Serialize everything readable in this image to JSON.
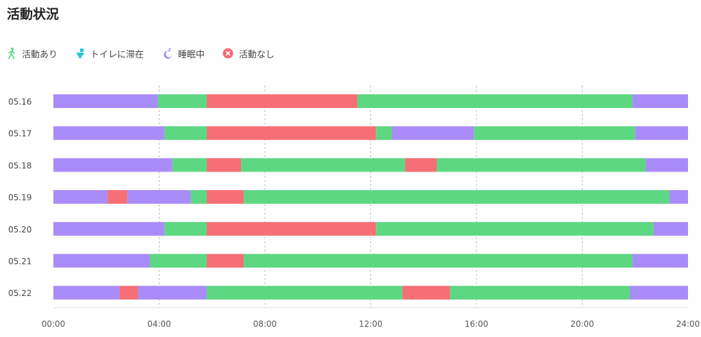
{
  "page": {
    "title": "活動状況"
  },
  "legend": [
    {
      "label": "活動あり",
      "icon": "walking-icon",
      "color": "#5cd97f"
    },
    {
      "label": "トイレに滞在",
      "icon": "toilet-icon",
      "color": "#29c4d6"
    },
    {
      "label": "睡眠中",
      "icon": "sleep-moon-icon",
      "color": "#a68cf5"
    },
    {
      "label": "活動なし",
      "icon": "no-activity-icon",
      "color": "#f56b74"
    }
  ],
  "chart_data": {
    "type": "timeline",
    "title": "活動状況",
    "x_ticks": [
      "00:00",
      "04:00",
      "08:00",
      "12:00",
      "16:00",
      "20:00",
      "24:00"
    ],
    "x_range_hours": [
      0,
      24
    ],
    "grid": "vertical dashed lines at each tick",
    "colors": {
      "active": "#5dd782",
      "toilet": "#5ad0dc",
      "sleep": "#a98cf7",
      "inactive": "#f66f76"
    },
    "rows": [
      {
        "date": "05.16",
        "segments": [
          {
            "start": 0.0,
            "end": 3.95,
            "state": "sleep"
          },
          {
            "start": 3.95,
            "end": 5.8,
            "state": "active"
          },
          {
            "start": 5.8,
            "end": 11.5,
            "state": "inactive"
          },
          {
            "start": 11.5,
            "end": 21.9,
            "state": "active"
          },
          {
            "start": 21.9,
            "end": 24.0,
            "state": "sleep"
          }
        ]
      },
      {
        "date": "05.17",
        "segments": [
          {
            "start": 0.0,
            "end": 4.2,
            "state": "sleep"
          },
          {
            "start": 4.2,
            "end": 5.8,
            "state": "active"
          },
          {
            "start": 5.8,
            "end": 12.2,
            "state": "inactive"
          },
          {
            "start": 12.2,
            "end": 12.8,
            "state": "active"
          },
          {
            "start": 12.8,
            "end": 15.9,
            "state": "sleep"
          },
          {
            "start": 15.9,
            "end": 22.0,
            "state": "active"
          },
          {
            "start": 22.0,
            "end": 24.0,
            "state": "sleep"
          }
        ]
      },
      {
        "date": "05.18",
        "segments": [
          {
            "start": 0.0,
            "end": 4.5,
            "state": "sleep"
          },
          {
            "start": 4.5,
            "end": 5.8,
            "state": "active"
          },
          {
            "start": 5.8,
            "end": 7.1,
            "state": "inactive"
          },
          {
            "start": 7.1,
            "end": 13.3,
            "state": "active"
          },
          {
            "start": 13.3,
            "end": 14.5,
            "state": "inactive"
          },
          {
            "start": 14.5,
            "end": 22.4,
            "state": "active"
          },
          {
            "start": 22.4,
            "end": 24.0,
            "state": "sleep"
          }
        ]
      },
      {
        "date": "05.19",
        "segments": [
          {
            "start": 0.0,
            "end": 2.05,
            "state": "sleep"
          },
          {
            "start": 2.05,
            "end": 2.8,
            "state": "inactive"
          },
          {
            "start": 2.8,
            "end": 5.2,
            "state": "sleep"
          },
          {
            "start": 5.2,
            "end": 5.8,
            "state": "active"
          },
          {
            "start": 5.8,
            "end": 7.2,
            "state": "inactive"
          },
          {
            "start": 7.2,
            "end": 23.3,
            "state": "active"
          },
          {
            "start": 23.3,
            "end": 24.0,
            "state": "sleep"
          }
        ]
      },
      {
        "date": "05.20",
        "segments": [
          {
            "start": 0.0,
            "end": 4.2,
            "state": "sleep"
          },
          {
            "start": 4.2,
            "end": 5.8,
            "state": "active"
          },
          {
            "start": 5.8,
            "end": 12.2,
            "state": "inactive"
          },
          {
            "start": 12.2,
            "end": 22.7,
            "state": "active"
          },
          {
            "start": 22.7,
            "end": 24.0,
            "state": "sleep"
          }
        ]
      },
      {
        "date": "05.21",
        "segments": [
          {
            "start": 0.0,
            "end": 3.65,
            "state": "sleep"
          },
          {
            "start": 3.65,
            "end": 5.8,
            "state": "active"
          },
          {
            "start": 5.8,
            "end": 7.2,
            "state": "inactive"
          },
          {
            "start": 7.2,
            "end": 21.9,
            "state": "active"
          },
          {
            "start": 21.9,
            "end": 24.0,
            "state": "sleep"
          }
        ]
      },
      {
        "date": "05.22",
        "segments": [
          {
            "start": 0.0,
            "end": 2.5,
            "state": "sleep"
          },
          {
            "start": 2.5,
            "end": 3.2,
            "state": "inactive"
          },
          {
            "start": 3.2,
            "end": 5.8,
            "state": "sleep"
          },
          {
            "start": 5.8,
            "end": 13.2,
            "state": "active"
          },
          {
            "start": 13.2,
            "end": 15.0,
            "state": "inactive"
          },
          {
            "start": 15.0,
            "end": 21.8,
            "state": "active"
          },
          {
            "start": 21.8,
            "end": 24.0,
            "state": "sleep"
          }
        ]
      }
    ]
  }
}
